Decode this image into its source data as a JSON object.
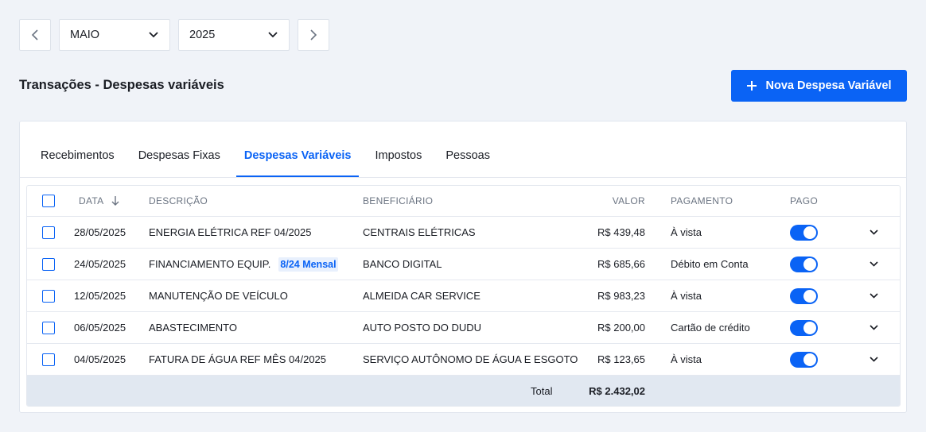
{
  "period": {
    "month": "MAIO",
    "year": "2025"
  },
  "page_title": "Transações - Despesas variáveis",
  "new_button_label": "Nova Despesa Variável",
  "tabs": [
    {
      "label": "Recebimentos",
      "active": false
    },
    {
      "label": "Despesas Fixas",
      "active": false
    },
    {
      "label": "Despesas Variáveis",
      "active": true
    },
    {
      "label": "Impostos",
      "active": false
    },
    {
      "label": "Pessoas",
      "active": false
    }
  ],
  "columns": {
    "date": "DATA",
    "description": "DESCRIÇÃO",
    "beneficiary": "BENEFICIÁRIO",
    "value": "VALOR",
    "payment": "PAGAMENTO",
    "paid": "PAGO"
  },
  "rows": [
    {
      "date": "28/05/2025",
      "description": "ENERGIA ELÉTRICA REF 04/2025",
      "badge": "",
      "beneficiary": "CENTRAIS ELÉTRICAS",
      "value": "R$ 439,48",
      "payment": "À vista",
      "paid": true
    },
    {
      "date": "24/05/2025",
      "description": "FINANCIAMENTO EQUIP.",
      "badge": "8/24 Mensal",
      "beneficiary": "BANCO DIGITAL",
      "value": "R$ 685,66",
      "payment": "Débito em Conta",
      "paid": true
    },
    {
      "date": "12/05/2025",
      "description": "MANUTENÇÃO DE VEÍCULO",
      "badge": "",
      "beneficiary": "ALMEIDA CAR SERVICE",
      "value": "R$ 983,23",
      "payment": "À vista",
      "paid": true
    },
    {
      "date": "06/05/2025",
      "description": "ABASTECIMENTO",
      "badge": "",
      "beneficiary": "AUTO POSTO DO DUDU",
      "value": "R$ 200,00",
      "payment": "Cartão de crédito",
      "paid": true
    },
    {
      "date": "04/05/2025",
      "description": "FATURA DE ÁGUA REF MÊS 04/2025",
      "badge": "",
      "beneficiary": "SERVIÇO AUTÔNOMO DE ÁGUA E ESGOTO",
      "value": "R$ 123,65",
      "payment": "À vista",
      "paid": true
    }
  ],
  "total": {
    "label": "Total",
    "value": "R$ 2.432,02"
  },
  "colors": {
    "accent": "#0a63f5",
    "background": "#f0f3f8",
    "footer": "#e1e8f1"
  }
}
